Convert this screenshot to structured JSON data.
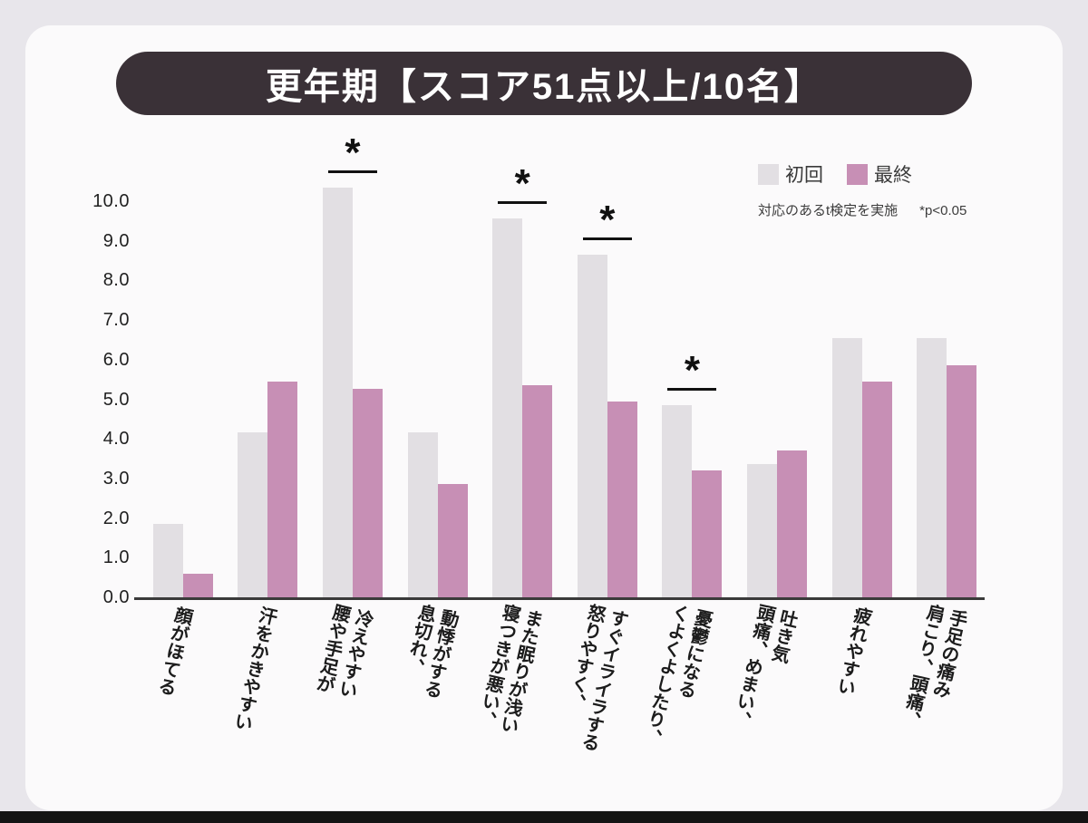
{
  "page": {
    "title": "更年期【スコア51点以上/10名】"
  },
  "legend": {
    "series1": "初回",
    "series2": "最終"
  },
  "note": {
    "method": "対応のあるt検定を実施",
    "threshold": "*p<0.05"
  },
  "colors": {
    "initial_bar": "#e2dfe3",
    "final_bar": "#c78fb5",
    "title_bg": "#3a3137",
    "axis": "#3a3a3a"
  },
  "chart_data": {
    "type": "bar",
    "title": "更年期【スコア51点以上/10名】",
    "categories": [
      "顔がほてる",
      "汗をかきやすい",
      "腰や手足が\n冷えやすい",
      "息切れ、\n動悸がする",
      "寝つきが悪い、\nまた眠りが浅い",
      "怒りやすく、\nすぐイライラする",
      "くよくよしたり、\n憂鬱になる",
      "頭痛、めまい、\n吐き気",
      "疲れやすい",
      "肩こり、頭痛、\n手足の痛み"
    ],
    "series": [
      {
        "name": "初回",
        "color": "#e2dfe3",
        "values": [
          1.9,
          4.2,
          10.4,
          4.2,
          9.6,
          8.7,
          4.9,
          3.4,
          6.6,
          6.6
        ]
      },
      {
        "name": "最終",
        "color": "#c78fb5",
        "values": [
          0.65,
          5.5,
          5.3,
          2.9,
          5.4,
          5.0,
          3.25,
          3.75,
          5.5,
          5.9
        ]
      }
    ],
    "significant": [
      false,
      false,
      true,
      false,
      true,
      true,
      true,
      false,
      false,
      false
    ],
    "significance_marker": "*",
    "ylim": [
      0,
      10
    ],
    "yticks": [
      "10.0",
      "9.0",
      "8.0",
      "7.0",
      "6.0",
      "5.0",
      "4.0",
      "3.0",
      "2.0",
      "1.0",
      "0.0"
    ],
    "grid": false,
    "legend_position": "top-right",
    "note": "対応のあるt検定を実施 *p<0.05"
  }
}
